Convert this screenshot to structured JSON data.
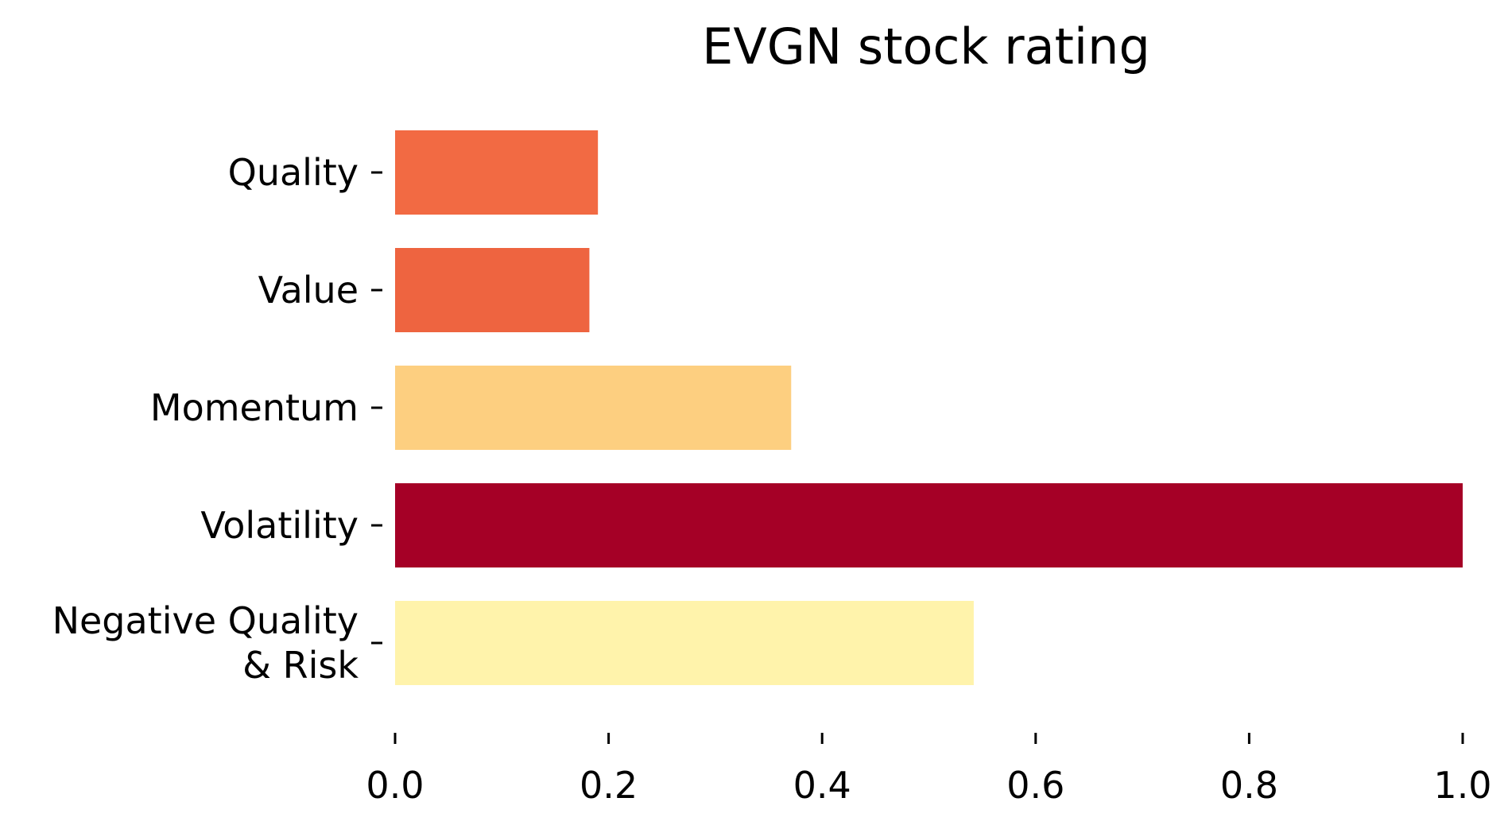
{
  "chart_data": {
    "type": "bar",
    "orientation": "horizontal",
    "title": "EVGN stock rating",
    "xlabel": "",
    "ylabel": "",
    "categories": [
      [
        "Quality"
      ],
      [
        "Value"
      ],
      [
        "Momentum"
      ],
      [
        "Volatility"
      ],
      [
        "Negative Quality",
        "& Risk"
      ]
    ],
    "values": [
      0.19,
      0.182,
      0.371,
      1.0,
      0.542
    ],
    "colors": [
      "#f26a43",
      "#ee6440",
      "#fdcf80",
      "#a50026",
      "#fff3ab"
    ],
    "xlim": [
      0.0,
      1.0
    ],
    "xticks": [
      "0.0",
      "0.2",
      "0.4",
      "0.6",
      "0.8",
      "1.0"
    ],
    "grid": false,
    "legend": "none"
  }
}
